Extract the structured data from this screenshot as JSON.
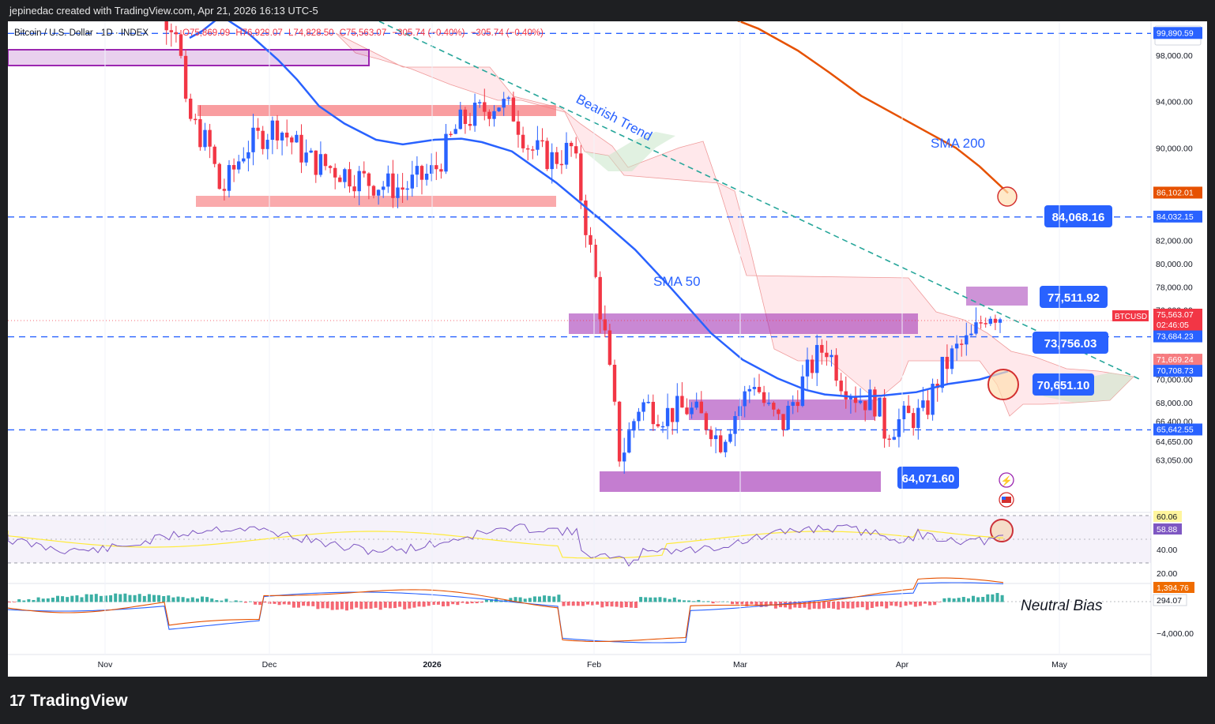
{
  "header": {
    "attribution": "jepinedac created with TradingView.com, Apr 21, 2026 16:13 UTC-5",
    "symbol_line": "Bitcoin / U.S. Dollar · 1D · INDEX",
    "ohlc": {
      "open": "O75,869.09",
      "high": "H76,929.07",
      "low": "L74,828.50",
      "close": "C75,563.07",
      "change": "−305.74 (−0.40%)",
      "change2": "−305.74 (−0.40%)"
    },
    "currency": "USD"
  },
  "footer": {
    "brand": "TradingView"
  },
  "colors": {
    "up": "#2962ff",
    "down": "#f23645",
    "sma50": "#2962ff",
    "sma200": "#e65100",
    "zone": "#9c27b0",
    "resistance": "#f77c80",
    "trend": "#26a69a",
    "cloud": "#ffcdd2",
    "rsi": "#9575cd"
  },
  "chart_data": {
    "type": "candlestick",
    "x_ticks": [
      "Nov",
      "Dec",
      "2026",
      "Feb",
      "Mar",
      "Apr",
      "May"
    ],
    "y_ticks": [
      "98,000.00",
      "94,000.00",
      "90,000.00",
      "86,000.00",
      "82,000.00",
      "80,000.00",
      "78,000.00",
      "76,000.00",
      "72,000.00",
      "70,000.00",
      "68,000.00",
      "66,400.00",
      "64,650.00",
      "63,050.00"
    ],
    "price_badges": [
      {
        "label": "99,890.59",
        "kind": "level"
      },
      {
        "label": "86,102.01",
        "kind": "sma200"
      },
      {
        "label": "84,032.15",
        "kind": "level"
      },
      {
        "label": "75,563.07",
        "kind": "last",
        "sub": "02:46:05"
      },
      {
        "label": "73,684.23",
        "kind": "level"
      },
      {
        "label": "71,669.24",
        "kind": "cloud"
      },
      {
        "label": "70,708.73",
        "kind": "sma50"
      },
      {
        "label": "65,642.55",
        "kind": "level"
      }
    ],
    "symbol_tag": "BTCUSD",
    "horizontal_levels": [
      99890.59,
      84032.15,
      73684.23,
      65642.55
    ],
    "callouts": [
      "84,068.16",
      "77,511.92",
      "73,756.03",
      "70,651.10",
      "64,071.60"
    ],
    "annotations": [
      "Bearish Trend",
      "SMA 200",
      "SMA 50",
      "Neutral Bias"
    ],
    "series": [
      {
        "name": "SMA 200",
        "points": [
          [
            0,
            104500
          ],
          [
            60,
            104200
          ],
          [
            130,
            103200
          ],
          [
            190,
            101900
          ],
          [
            250,
            100300
          ],
          [
            300,
            98400
          ],
          [
            340,
            96500
          ],
          [
            380,
            94500
          ],
          [
            420,
            93000
          ],
          [
            460,
            91500
          ],
          [
            500,
            90000
          ],
          [
            530,
            88400
          ],
          [
            566,
            86100
          ]
        ]
      },
      {
        "name": "SMA 50",
        "points": [
          [
            0,
            99500
          ],
          [
            8,
            100100
          ],
          [
            20,
            101400
          ],
          [
            38,
            99800
          ],
          [
            56,
            97600
          ],
          [
            68,
            95900
          ],
          [
            82,
            93600
          ],
          [
            98,
            92100
          ],
          [
            118,
            90700
          ],
          [
            135,
            90300
          ],
          [
            155,
            90700
          ],
          [
            172,
            90800
          ],
          [
            185,
            90500
          ],
          [
            204,
            89700
          ],
          [
            232,
            87000
          ],
          [
            262,
            83600
          ],
          [
            282,
            81200
          ],
          [
            304,
            78000
          ],
          [
            330,
            74000
          ],
          [
            350,
            71700
          ],
          [
            372,
            70100
          ],
          [
            390,
            69100
          ],
          [
            402,
            68700
          ],
          [
            420,
            68500
          ],
          [
            438,
            68600
          ],
          [
            460,
            68900
          ],
          [
            480,
            69600
          ],
          [
            500,
            70000
          ],
          [
            518,
            70700
          ]
        ]
      }
    ],
    "rsi": {
      "ticks": [
        "60.06",
        "58.88",
        "40.00",
        "20.00"
      ]
    },
    "macd": {
      "ticks": [
        "1,394.76",
        "294.07",
        "−4,000.00"
      ]
    }
  }
}
